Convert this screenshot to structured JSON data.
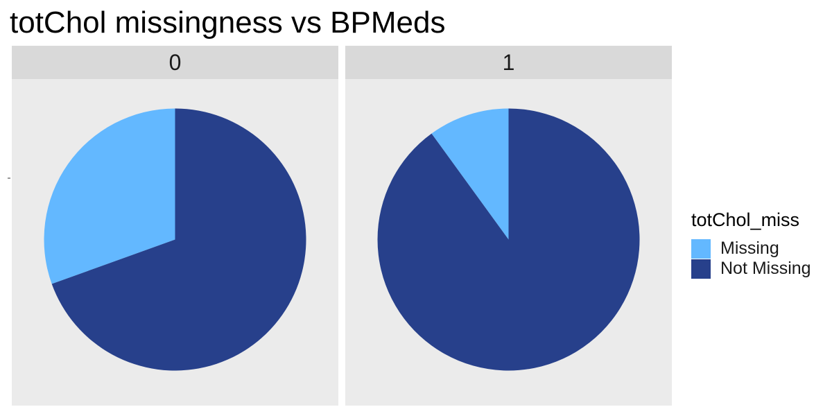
{
  "chart_data": {
    "type": "pie",
    "title": "totChol missingness vs BPMeds",
    "legend_title": "totChol_miss",
    "legend_position": "right",
    "categories": [
      "Missing",
      "Not Missing"
    ],
    "colors": {
      "Missing": "#63b8ff",
      "Not Missing": "#27408b"
    },
    "facets": [
      {
        "label": "0",
        "slices": [
          {
            "category": "Missing",
            "share": 0.305
          },
          {
            "category": "Not Missing",
            "share": 0.695
          }
        ]
      },
      {
        "label": "1",
        "slices": [
          {
            "category": "Missing",
            "share": 0.1
          },
          {
            "category": "Not Missing",
            "share": 0.9
          }
        ]
      }
    ]
  }
}
